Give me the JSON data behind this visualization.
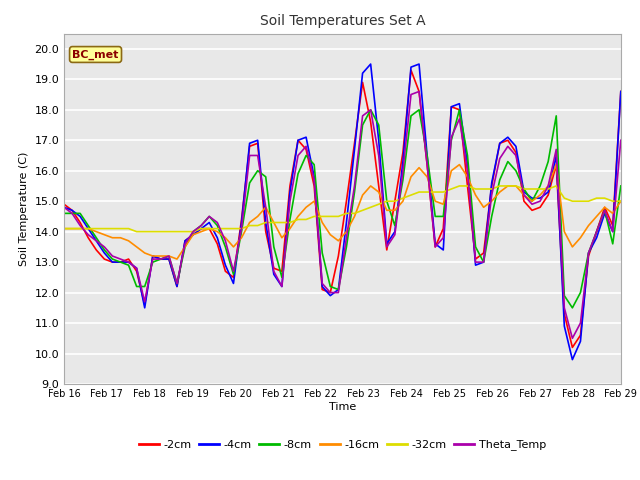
{
  "title": "Soil Temperatures Set A",
  "xlabel": "Time",
  "ylabel": "Soil Temperature (C)",
  "ylim": [
    9.0,
    20.5
  ],
  "yticks": [
    9.0,
    10.0,
    11.0,
    12.0,
    13.0,
    14.0,
    15.0,
    16.0,
    17.0,
    18.0,
    19.0,
    20.0
  ],
  "xtick_labels": [
    "Feb 16",
    "Feb 17",
    "Feb 18",
    "Feb 19",
    "Feb 20",
    "Feb 21",
    "Feb 22",
    "Feb 23",
    "Feb 24",
    "Feb 25",
    "Feb 26",
    "Feb 27",
    "Feb 28",
    "Feb 29"
  ],
  "annotation_text": "BC_met",
  "annotation_color": "#8B0000",
  "annotation_bg": "#FFFF99",
  "annotation_border": "#8B6914",
  "series": [
    {
      "label": "-2cm",
      "color": "#FF0000",
      "linewidth": 1.2,
      "values": [
        14.9,
        14.7,
        14.3,
        13.8,
        13.4,
        13.1,
        13.0,
        13.0,
        13.1,
        12.7,
        11.6,
        13.2,
        13.1,
        13.1,
        12.2,
        13.7,
        13.9,
        14.1,
        14.1,
        13.6,
        12.7,
        12.5,
        14.4,
        16.8,
        16.9,
        14.0,
        12.8,
        12.7,
        15.5,
        17.0,
        16.7,
        15.5,
        12.1,
        12.0,
        13.2,
        15.0,
        16.9,
        18.9,
        17.6,
        15.5,
        13.4,
        15.0,
        16.6,
        19.3,
        18.6,
        16.2,
        13.5,
        14.1,
        18.1,
        18.0,
        15.5,
        13.1,
        13.3,
        15.5,
        16.9,
        17.0,
        16.6,
        15.0,
        14.7,
        14.8,
        15.2,
        16.2,
        11.3,
        10.2,
        10.6,
        13.2,
        14.0,
        14.8,
        14.2,
        18.6
      ]
    },
    {
      "label": "-4cm",
      "color": "#0000FF",
      "linewidth": 1.2,
      "values": [
        14.8,
        14.7,
        14.5,
        14.1,
        13.7,
        13.3,
        13.0,
        13.0,
        13.0,
        12.8,
        11.5,
        13.2,
        13.1,
        13.1,
        12.2,
        13.7,
        13.9,
        14.1,
        14.3,
        13.8,
        12.9,
        12.3,
        14.3,
        16.9,
        17.0,
        14.3,
        12.6,
        12.2,
        15.3,
        17.0,
        17.1,
        15.8,
        12.2,
        11.9,
        12.1,
        14.3,
        16.7,
        19.2,
        19.5,
        17.0,
        13.6,
        14.0,
        16.3,
        19.4,
        19.5,
        16.5,
        13.6,
        13.4,
        18.1,
        18.2,
        16.2,
        12.9,
        13.0,
        15.6,
        16.9,
        17.1,
        16.8,
        15.3,
        15.1,
        15.1,
        15.3,
        16.5,
        10.9,
        9.8,
        10.4,
        13.3,
        13.8,
        14.6,
        14.0,
        18.6
      ]
    },
    {
      "label": "-8cm",
      "color": "#00BB00",
      "linewidth": 1.2,
      "values": [
        14.6,
        14.6,
        14.6,
        14.2,
        13.8,
        13.4,
        13.1,
        13.0,
        12.9,
        12.2,
        12.2,
        13.0,
        13.1,
        13.2,
        12.3,
        13.5,
        14.0,
        14.2,
        14.5,
        14.2,
        13.5,
        12.6,
        14.0,
        15.6,
        16.0,
        15.8,
        13.5,
        12.5,
        14.4,
        15.9,
        16.5,
        16.2,
        13.3,
        12.2,
        12.1,
        13.5,
        15.3,
        17.5,
        18.0,
        17.5,
        15.0,
        14.2,
        15.7,
        17.8,
        18.0,
        16.5,
        14.5,
        14.5,
        17.0,
        18.0,
        16.5,
        13.5,
        13.0,
        14.5,
        15.7,
        16.3,
        16.0,
        15.4,
        15.0,
        15.5,
        16.3,
        17.8,
        11.9,
        11.5,
        12.0,
        13.3,
        14.0,
        14.7,
        13.6,
        15.5
      ]
    },
    {
      "label": "-16cm",
      "color": "#FF8C00",
      "linewidth": 1.2,
      "values": [
        14.1,
        14.1,
        14.1,
        14.1,
        14.0,
        13.9,
        13.8,
        13.8,
        13.7,
        13.5,
        13.3,
        13.2,
        13.2,
        13.2,
        13.1,
        13.5,
        13.9,
        14.0,
        14.1,
        14.0,
        13.8,
        13.5,
        13.8,
        14.3,
        14.5,
        14.8,
        14.3,
        13.8,
        14.1,
        14.5,
        14.8,
        15.0,
        14.3,
        13.9,
        13.7,
        14.0,
        14.5,
        15.2,
        15.5,
        15.3,
        14.7,
        14.7,
        15.0,
        15.8,
        16.1,
        15.8,
        15.0,
        14.9,
        16.0,
        16.2,
        15.8,
        15.2,
        14.8,
        15.0,
        15.3,
        15.5,
        15.5,
        15.2,
        15.0,
        15.2,
        15.5,
        16.2,
        14.0,
        13.5,
        13.8,
        14.2,
        14.5,
        14.8,
        14.6,
        15.0
      ]
    },
    {
      "label": "-32cm",
      "color": "#DDDD00",
      "linewidth": 1.2,
      "values": [
        14.1,
        14.1,
        14.1,
        14.1,
        14.1,
        14.1,
        14.1,
        14.1,
        14.1,
        14.0,
        14.0,
        14.0,
        14.0,
        14.0,
        14.0,
        14.0,
        14.0,
        14.1,
        14.1,
        14.1,
        14.1,
        14.1,
        14.1,
        14.2,
        14.2,
        14.3,
        14.3,
        14.3,
        14.3,
        14.4,
        14.4,
        14.5,
        14.5,
        14.5,
        14.5,
        14.6,
        14.6,
        14.7,
        14.8,
        14.9,
        15.0,
        15.0,
        15.1,
        15.2,
        15.3,
        15.3,
        15.3,
        15.3,
        15.4,
        15.5,
        15.5,
        15.4,
        15.4,
        15.4,
        15.5,
        15.5,
        15.5,
        15.4,
        15.4,
        15.4,
        15.4,
        15.5,
        15.1,
        15.0,
        15.0,
        15.0,
        15.1,
        15.1,
        15.0,
        15.0
      ]
    },
    {
      "label": "Theta_Temp",
      "color": "#AA00AA",
      "linewidth": 1.2,
      "values": [
        14.8,
        14.6,
        14.2,
        13.9,
        13.7,
        13.5,
        13.2,
        13.1,
        13.0,
        12.8,
        11.7,
        13.1,
        13.1,
        13.2,
        12.3,
        13.6,
        14.0,
        14.2,
        14.5,
        14.3,
        13.7,
        12.7,
        14.1,
        16.5,
        16.5,
        14.8,
        12.7,
        12.2,
        15.0,
        16.5,
        16.8,
        15.7,
        12.3,
        12.0,
        12.0,
        13.8,
        15.5,
        17.8,
        18.0,
        16.5,
        13.5,
        13.9,
        16.0,
        18.5,
        18.6,
        16.2,
        13.5,
        13.8,
        17.1,
        17.7,
        16.0,
        13.0,
        13.0,
        15.2,
        16.4,
        16.8,
        16.5,
        15.2,
        14.9,
        15.0,
        15.5,
        16.7,
        11.5,
        10.5,
        11.0,
        13.3,
        14.0,
        14.7,
        14.0,
        17.0
      ]
    }
  ],
  "n_points": 70,
  "fig_bg_color": "#FFFFFF",
  "plot_bg_color": "#E8E8E8",
  "grid_color": "#FFFFFF"
}
